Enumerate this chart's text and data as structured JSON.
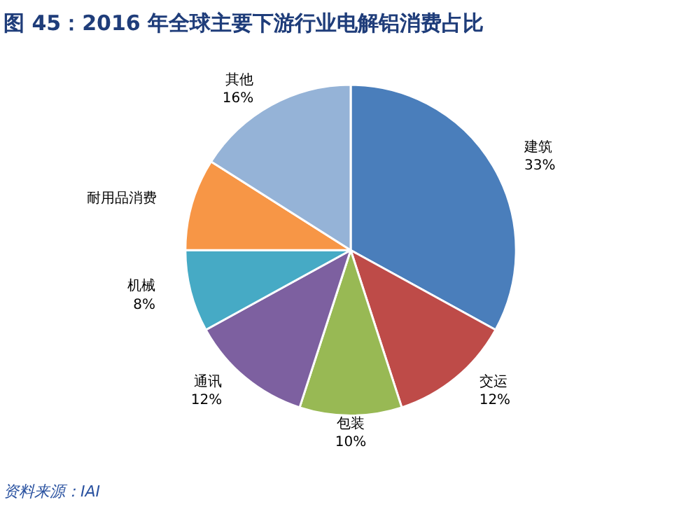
{
  "chart_data": {
    "type": "pie",
    "title": "图 45：2016 年全球主要下游行业电解铝消费占比",
    "categories": [
      "建筑",
      "交运",
      "包装",
      "通讯",
      "机械",
      "耐用品消费",
      "其他"
    ],
    "values": [
      33,
      12,
      10,
      12,
      8,
      9,
      16
    ],
    "value_labels": [
      "33%",
      "12%",
      "10%",
      "12%",
      "8%",
      null,
      "16%"
    ],
    "colors": [
      "#4a7ebb",
      "#be4b48",
      "#98b954",
      "#7d60a0",
      "#46aac5",
      "#f79646",
      "#95b3d7"
    ],
    "annotations": [
      "资料来源：IAI"
    ]
  }
}
